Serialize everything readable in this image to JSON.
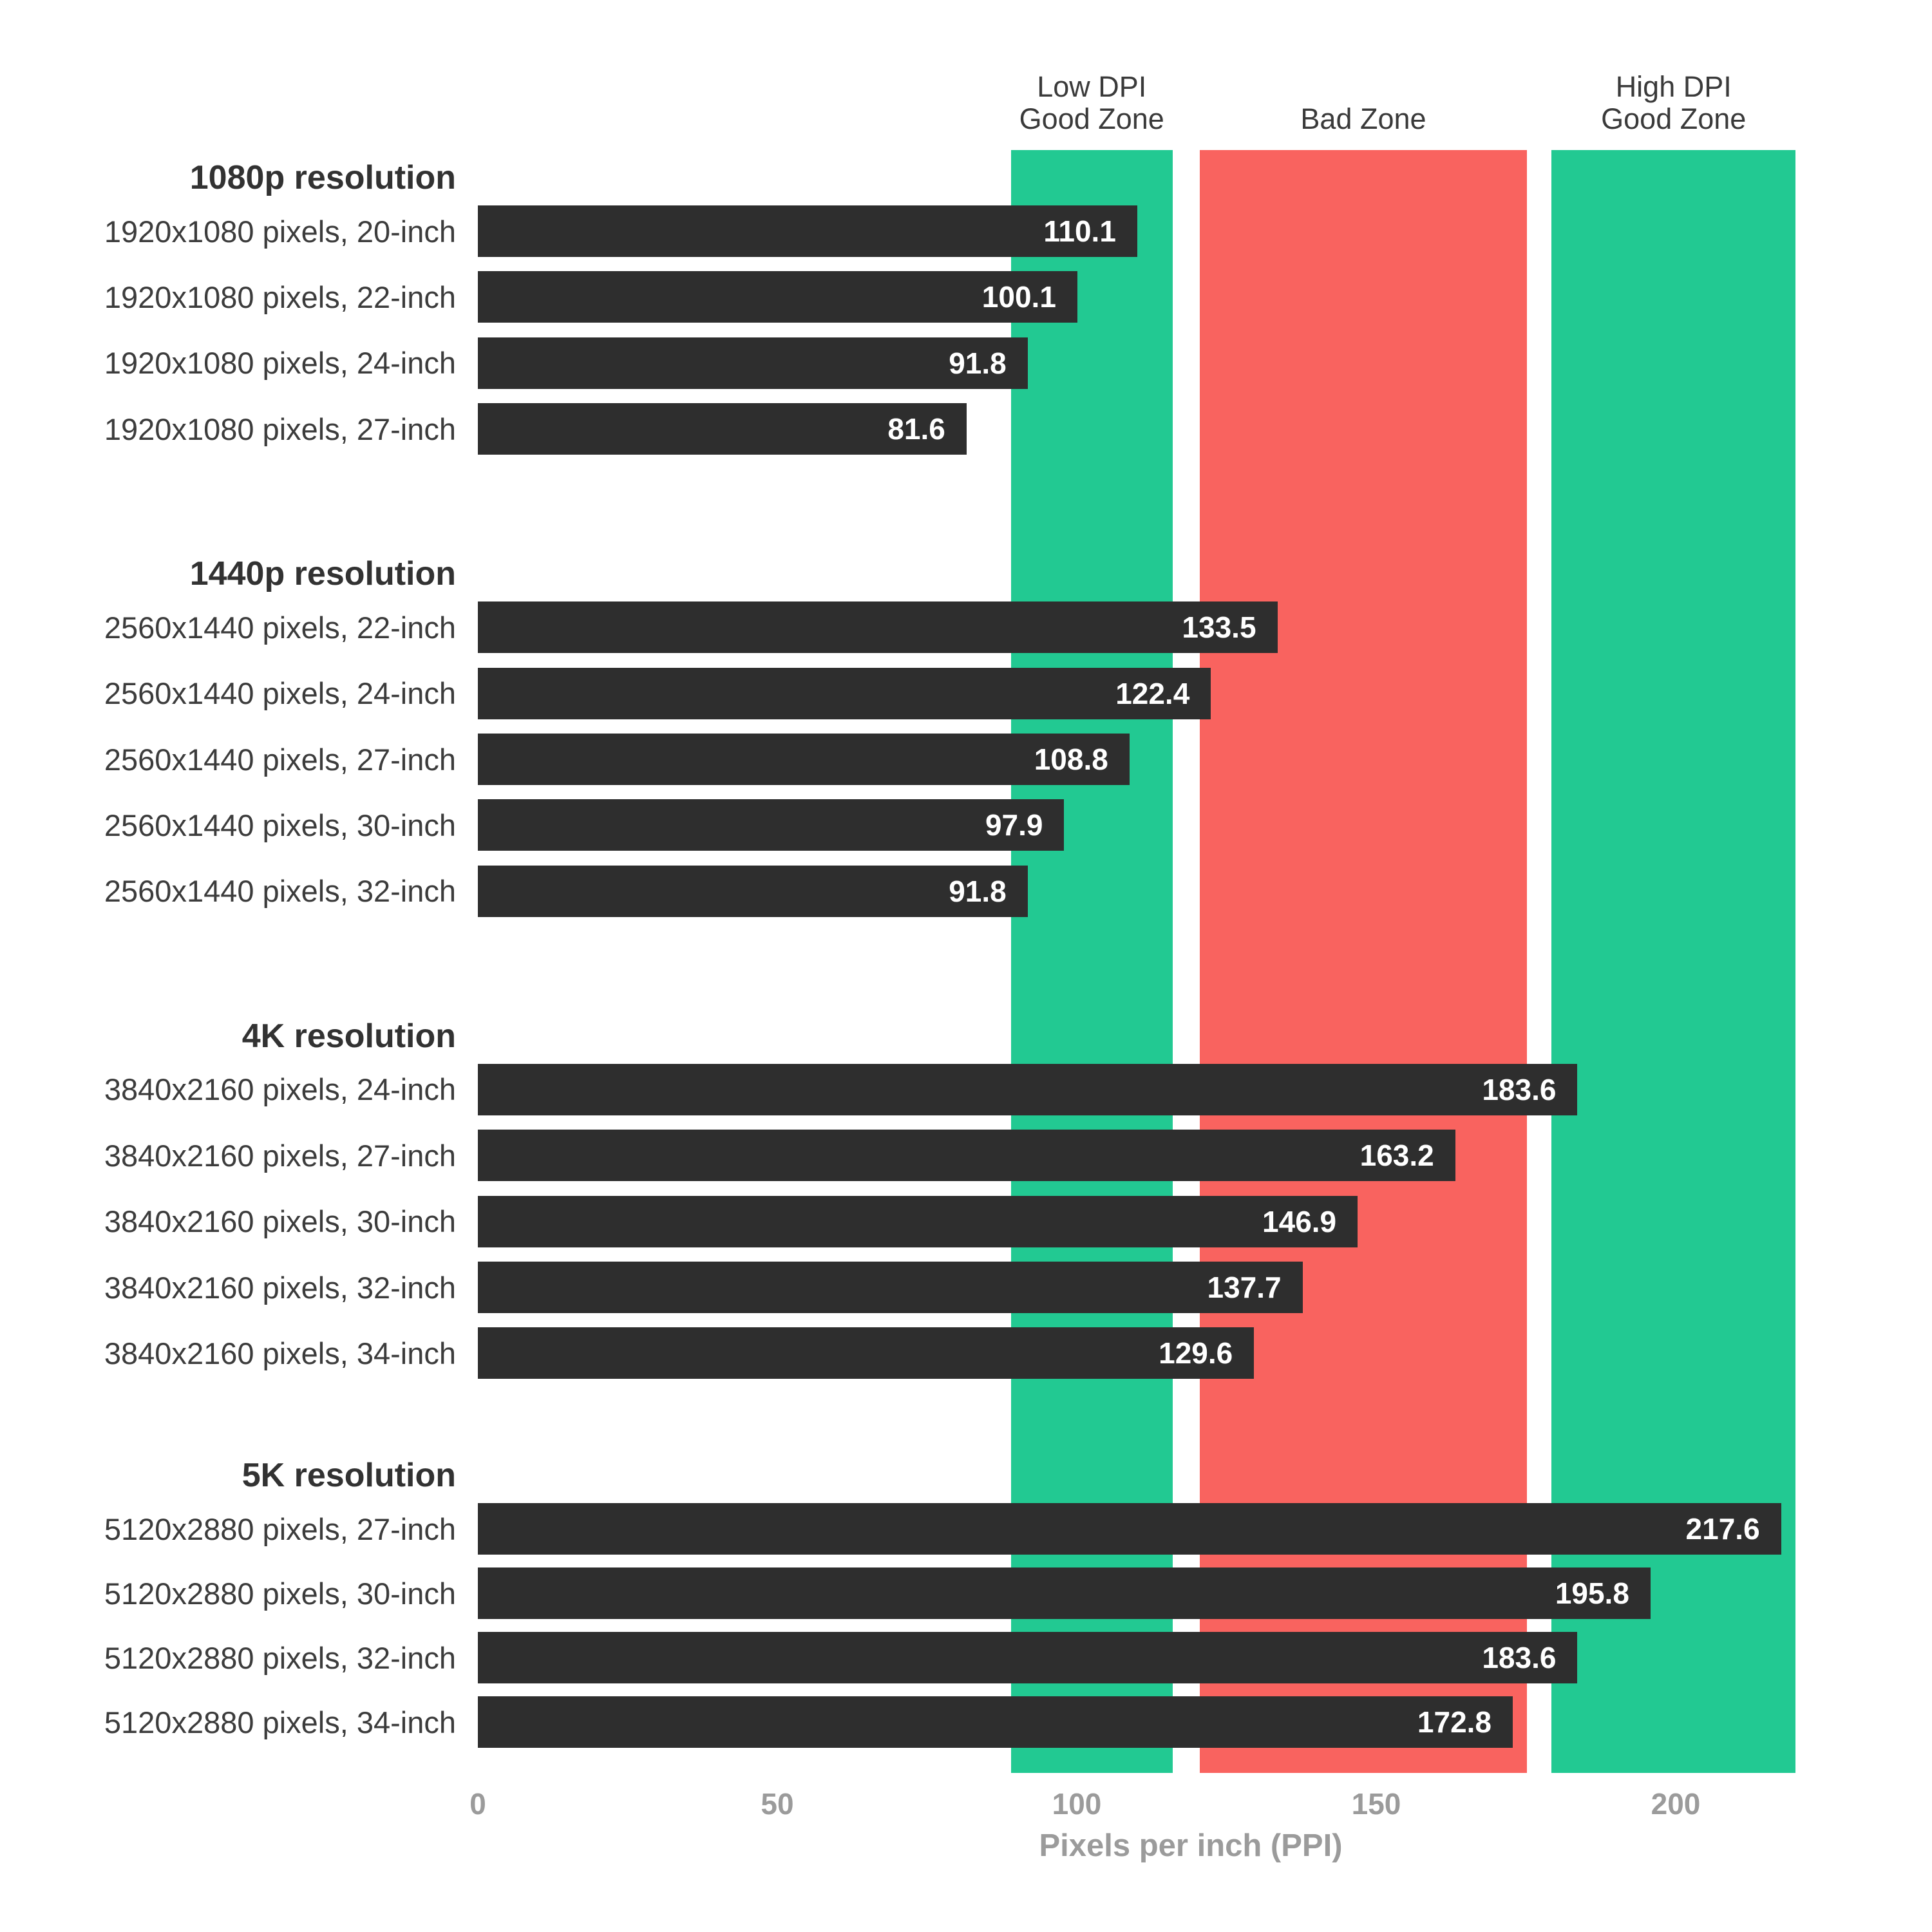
{
  "chart_data": {
    "type": "bar",
    "orientation": "horizontal",
    "xlabel": "Pixels per inch (PPI)",
    "xlim": [
      0,
      221
    ],
    "xticks": [
      0,
      50,
      100,
      150,
      200
    ],
    "grid": false,
    "bar_color": "#2e2e2e",
    "value_label_color": "#ffffff",
    "axis_text_color": "#9b9b9b",
    "zones": [
      {
        "name": "low-dpi-good-zone",
        "label_lines": [
          "Low DPI",
          "Good Zone"
        ],
        "from": 89,
        "to": 116,
        "color": "#22c992"
      },
      {
        "name": "bad-zone",
        "label_lines": [
          "Bad Zone"
        ],
        "from": 120.5,
        "to": 175.2,
        "color": "#f9635f"
      },
      {
        "name": "high-dpi-good-zone",
        "label_lines": [
          "High DPI",
          "Good Zone"
        ],
        "from": 179.3,
        "to": 220,
        "color": "#22c992"
      }
    ],
    "groups": [
      {
        "header": "1080p resolution",
        "items": [
          {
            "label": "1920x1080 pixels, 20-inch",
            "value": 110.1
          },
          {
            "label": "1920x1080 pixels, 22-inch",
            "value": 100.1
          },
          {
            "label": "1920x1080 pixels, 24-inch",
            "value": 91.8
          },
          {
            "label": "1920x1080 pixels, 27-inch",
            "value": 81.6
          }
        ]
      },
      {
        "header": "1440p resolution",
        "items": [
          {
            "label": "2560x1440 pixels, 22-inch",
            "value": 133.5
          },
          {
            "label": "2560x1440 pixels, 24-inch",
            "value": 122.4
          },
          {
            "label": "2560x1440 pixels, 27-inch",
            "value": 108.8
          },
          {
            "label": "2560x1440 pixels, 30-inch",
            "value": 97.9
          },
          {
            "label": "2560x1440 pixels, 32-inch",
            "value": 91.8
          }
        ]
      },
      {
        "header": "4K resolution",
        "items": [
          {
            "label": "3840x2160 pixels, 24-inch",
            "value": 183.6
          },
          {
            "label": "3840x2160 pixels, 27-inch",
            "value": 163.2
          },
          {
            "label": "3840x2160 pixels, 30-inch",
            "value": 146.9
          },
          {
            "label": "3840x2160 pixels, 32-inch",
            "value": 137.7
          },
          {
            "label": "3840x2160 pixels, 34-inch",
            "value": 129.6
          }
        ]
      },
      {
        "header": "5K resolution",
        "items": [
          {
            "label": "5120x2880 pixels, 27-inch",
            "value": 217.6
          },
          {
            "label": "5120x2880 pixels, 30-inch",
            "value": 195.8
          },
          {
            "label": "5120x2880 pixels, 32-inch",
            "value": 183.6
          },
          {
            "label": "5120x2880 pixels, 34-inch",
            "value": 172.8
          }
        ]
      }
    ]
  }
}
